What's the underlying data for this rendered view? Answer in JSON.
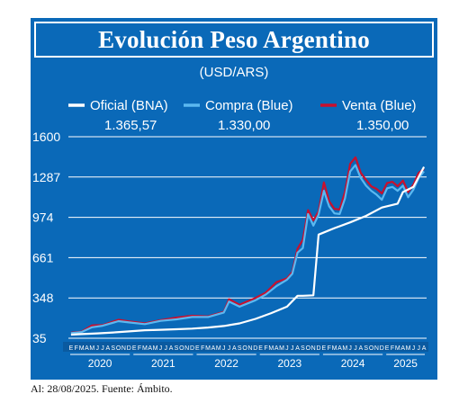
{
  "title": "Evolución Peso Argentino",
  "subtitle": "(USD/ARS)",
  "footer": "Al: 28/08/2025. Fuente: Ámbito.",
  "colors": {
    "background": "#0a69b8",
    "oficial": "#ffffff",
    "compra": "#5bb8f0",
    "venta": "#c8102e",
    "grid": "#ffffff"
  },
  "chart_data": {
    "type": "line",
    "ylim": [
      35,
      1600
    ],
    "y_ticks": [
      35,
      348,
      661,
      974,
      1287,
      1600
    ],
    "x_range": [
      "2020-01",
      "2025-08"
    ],
    "month_ticks": [
      "E",
      "F",
      "M",
      "A",
      "M",
      "J",
      "J",
      "A",
      "S",
      "O",
      "N",
      "D",
      "E",
      "F",
      "M",
      "A",
      "M",
      "J",
      "J",
      "A",
      "S",
      "O",
      "N",
      "D",
      "E",
      "F",
      "M",
      "A",
      "M",
      "J",
      "J",
      "A",
      "S",
      "O",
      "N",
      "D",
      "E",
      "F",
      "M",
      "A",
      "M",
      "J",
      "J",
      "A",
      "S",
      "O",
      "N",
      "D",
      "E",
      "F",
      "M",
      "A",
      "M",
      "J",
      "J",
      "A",
      "S",
      "O",
      "N",
      "D",
      "E",
      "F",
      "M",
      "A",
      "M",
      "J",
      "J",
      "A"
    ],
    "year_labels": [
      "2020",
      "2021",
      "2022",
      "2023",
      "2024",
      "2025"
    ],
    "legend": [
      {
        "name": "Oficial (BNA)",
        "value": "1.365,57",
        "color": "#ffffff"
      },
      {
        "name": "Compra (Blue)",
        "value": "1.330,00",
        "color": "#5bb8f0"
      },
      {
        "name": "Venta (Blue)",
        "value": "1.350,00",
        "color": "#c8102e"
      }
    ],
    "series": [
      {
        "name": "Oficial (BNA)",
        "x": [
          "2020-01",
          "2020-03",
          "2020-06",
          "2020-09",
          "2020-12",
          "2021-03",
          "2021-06",
          "2021-09",
          "2021-12",
          "2022-03",
          "2022-06",
          "2022-09",
          "2022-12",
          "2023-03",
          "2023-06",
          "2023-08",
          "2023-09",
          "2023-11",
          "2023-12",
          "2024-03",
          "2024-06",
          "2024-09",
          "2024-12",
          "2025-03",
          "2025-04",
          "2025-06",
          "2025-08"
        ],
        "values": [
          63,
          67,
          73,
          80,
          88,
          97,
          101,
          105,
          110,
          118,
          130,
          150,
          185,
          230,
          280,
          365,
          365,
          368,
          840,
          890,
          935,
          985,
          1050,
          1080,
          1170,
          1210,
          1366
        ]
      },
      {
        "name": "Compra (Blue)",
        "x": [
          "2020-01",
          "2020-03",
          "2020-05",
          "2020-07",
          "2020-10",
          "2020-12",
          "2021-03",
          "2021-06",
          "2021-09",
          "2021-12",
          "2022-03",
          "2022-06",
          "2022-07",
          "2022-09",
          "2022-12",
          "2023-02",
          "2023-04",
          "2023-06",
          "2023-07",
          "2023-08",
          "2023-09",
          "2023-10",
          "2023-11",
          "2023-12",
          "2024-01",
          "2024-02",
          "2024-03",
          "2024-04",
          "2024-05",
          "2024-06",
          "2024-07",
          "2024-08",
          "2024-09",
          "2024-10",
          "2024-11",
          "2024-12",
          "2025-01",
          "2025-02",
          "2025-03",
          "2025-04",
          "2025-05",
          "2025-06",
          "2025-07",
          "2025-08"
        ],
        "values": [
          75,
          83,
          120,
          132,
          168,
          158,
          145,
          170,
          182,
          200,
          200,
          235,
          320,
          280,
          330,
          375,
          440,
          490,
          535,
          700,
          735,
          1000,
          910,
          995,
          1180,
          1060,
          1005,
          1000,
          1120,
          1330,
          1380,
          1280,
          1220,
          1180,
          1150,
          1110,
          1200,
          1210,
          1180,
          1220,
          1130,
          1190,
          1280,
          1330
        ]
      },
      {
        "name": "Venta (Blue)",
        "x": [
          "2020-01",
          "2020-03",
          "2020-05",
          "2020-07",
          "2020-10",
          "2020-12",
          "2021-03",
          "2021-06",
          "2021-09",
          "2021-12",
          "2022-03",
          "2022-06",
          "2022-07",
          "2022-09",
          "2022-12",
          "2023-02",
          "2023-04",
          "2023-06",
          "2023-07",
          "2023-08",
          "2023-09",
          "2023-10",
          "2023-11",
          "2023-12",
          "2024-01",
          "2024-02",
          "2024-03",
          "2024-04",
          "2024-05",
          "2024-06",
          "2024-07",
          "2024-08",
          "2024-09",
          "2024-10",
          "2024-11",
          "2024-12",
          "2025-01",
          "2025-02",
          "2025-03",
          "2025-04",
          "2025-05",
          "2025-06",
          "2025-07",
          "2025-08"
        ],
        "values": [
          78,
          86,
          135,
          137,
          178,
          166,
          150,
          175,
          195,
          210,
          205,
          240,
          338,
          295,
          348,
          390,
          470,
          500,
          550,
          730,
          800,
          1030,
          950,
          1020,
          1245,
          1100,
          1040,
          1035,
          1170,
          1390,
          1440,
          1320,
          1265,
          1215,
          1195,
          1160,
          1240,
          1250,
          1215,
          1260,
          1170,
          1230,
          1320,
          1350
        ]
      }
    ]
  }
}
